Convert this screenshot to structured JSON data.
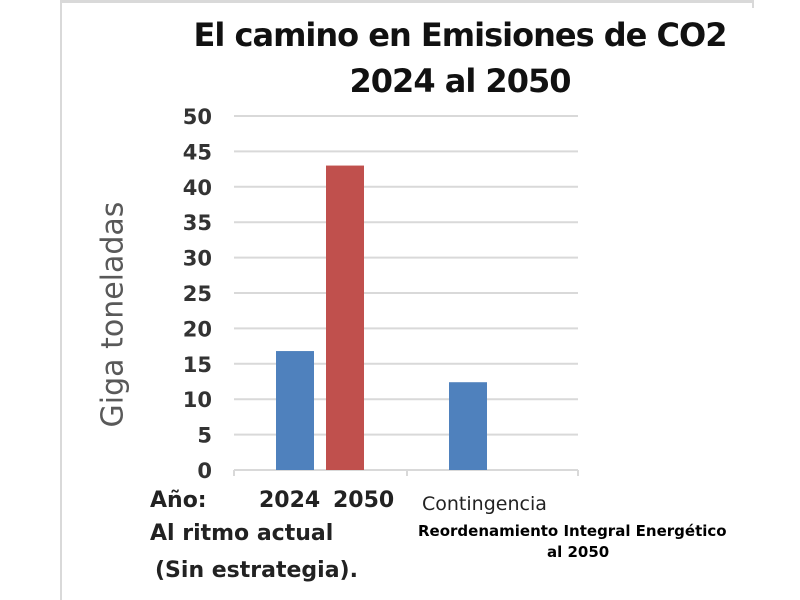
{
  "chart_data": {
    "type": "bar",
    "title": [
      "El camino en Emisiones de CO2",
      "2024 al  2050"
    ],
    "ylabel": "Giga toneladas",
    "ylim": [
      0,
      50
    ],
    "yticks": [
      0,
      5,
      10,
      15,
      20,
      25,
      30,
      35,
      40,
      45,
      50
    ],
    "grid": true,
    "groups": [
      {
        "name": "Al ritmo actual (Sin estrategia)",
        "bars": [
          {
            "label": "2024",
            "value": 16.8,
            "color": "#4f81bd"
          },
          {
            "label": "2050",
            "value": 43,
            "color": "#c0504d"
          }
        ]
      },
      {
        "name": "Contingencia",
        "bars": [
          {
            "label": "Contingencia 2050",
            "value": 12.4,
            "color": "#4f81bd"
          }
        ]
      }
    ],
    "annotations": {
      "year_prefix": "Año:",
      "tick_2024": "2024",
      "tick_2050": "2050",
      "group1_line1": "Al ritmo actual",
      "group1_line2": "(Sin estrategia).",
      "group2_label": "Contingencia",
      "group2_sub1": "Reordenamiento  Integral Energético",
      "group2_sub2": "al 2050"
    }
  }
}
